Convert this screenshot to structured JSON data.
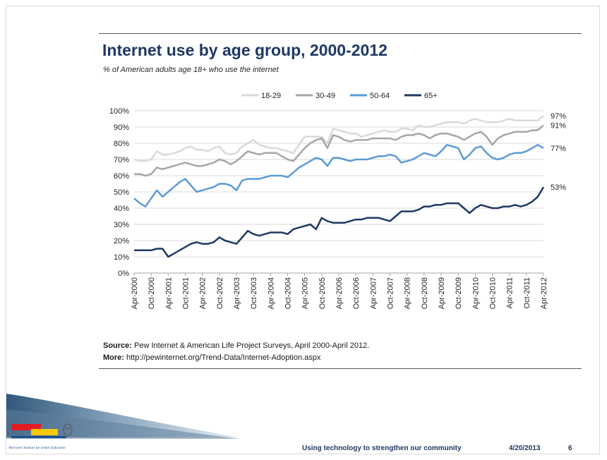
{
  "slide": {
    "title": "Internet use by age group, 2000-2012",
    "subtitle": "% of American adults age 18+ who use the internet",
    "source_label": "Source:",
    "source_text": " Pew Internet & American Life Project Surveys, April 2000-April 2012.",
    "more_label": "More:",
    "more_text": " http://pewinternet.org/Trend-Data/Internet-Adoption.aspx",
    "footer_tagline": "Using technology to strengthen our community",
    "footer_date": "4/20/2013",
    "page_number": "6",
    "logo_caption": "Worcester Institute for Senior Education"
  },
  "colors": {
    "accent_navy": "#1f3864",
    "logo_red": "#e31b23",
    "logo_yellow": "#f7c90a",
    "logo_blue": "#1c4e8c"
  },
  "chart_data": {
    "type": "line",
    "title": "Internet use by age group, 2000-2012",
    "subtitle": "% of American adults age 18+ who use the internet",
    "ylim": [
      0,
      100
    ],
    "yticks": [
      "0%",
      "10%",
      "20%",
      "30%",
      "40%",
      "50%",
      "60%",
      "70%",
      "80%",
      "90%",
      "100%"
    ],
    "xticks": [
      "Apr-2000",
      "Oct-2000",
      "Apr-2001",
      "Oct-2001",
      "Apr-2002",
      "Oct-2002",
      "Apr-2003",
      "Oct-2003",
      "Apr-2004",
      "Oct-2004",
      "Apr-2005",
      "Oct-2005",
      "Apr-2006",
      "Oct-2006",
      "Apr-2007",
      "Oct-2007",
      "Apr-2008",
      "Oct-2008",
      "Apr-2009",
      "Oct-2009",
      "Apr-2010",
      "Oct-2010",
      "Apr-2011",
      "Oct-2011",
      "Apr-2012"
    ],
    "grid": true,
    "legend_position": "top",
    "x": [
      "Apr-2000",
      "Jun-2000",
      "Aug-2000",
      "Oct-2000",
      "Dec-2000",
      "Feb-2001",
      "Apr-2001",
      "Jun-2001",
      "Aug-2001",
      "Oct-2001",
      "Dec-2001",
      "Feb-2002",
      "Apr-2002",
      "Jun-2002",
      "Aug-2002",
      "Oct-2002",
      "Dec-2002",
      "Feb-2003",
      "Apr-2003",
      "Jun-2003",
      "Aug-2003",
      "Oct-2003",
      "Dec-2003",
      "Feb-2004",
      "Apr-2004",
      "Jun-2004",
      "Aug-2004",
      "Oct-2004",
      "Dec-2004",
      "Feb-2005",
      "Apr-2005",
      "Jun-2005",
      "Aug-2005",
      "Oct-2005",
      "Dec-2005",
      "Feb-2006",
      "Apr-2006",
      "Jun-2006",
      "Aug-2006",
      "Oct-2006",
      "Dec-2006",
      "Feb-2007",
      "Apr-2007",
      "Jun-2007",
      "Aug-2007",
      "Oct-2007",
      "Dec-2007",
      "Feb-2008",
      "Apr-2008",
      "Jun-2008",
      "Aug-2008",
      "Oct-2008",
      "Dec-2008",
      "Feb-2009",
      "Apr-2009",
      "Jun-2009",
      "Aug-2009",
      "Oct-2009",
      "Dec-2009",
      "Feb-2010",
      "Apr-2010",
      "Jun-2010",
      "Aug-2010",
      "Oct-2010",
      "Dec-2010",
      "Feb-2011",
      "Apr-2011",
      "Jun-2011",
      "Aug-2011",
      "Oct-2011",
      "Dec-2011",
      "Feb-2012",
      "Apr-2012"
    ],
    "series": [
      {
        "name": "18-29",
        "color": "#d9d9d9",
        "end_label": "97%",
        "values": [
          70,
          69,
          69,
          70,
          75,
          73,
          73,
          74,
          75,
          77,
          78,
          76,
          76,
          75,
          77,
          78,
          74,
          73,
          74,
          78,
          80,
          82,
          79,
          78,
          77,
          77,
          76,
          75,
          74,
          79,
          84,
          84,
          84,
          84,
          80,
          89,
          88,
          87,
          86,
          86,
          84,
          85,
          86,
          87,
          88,
          87,
          87,
          89,
          89,
          88,
          91,
          90,
          90,
          91,
          92,
          93,
          93,
          93,
          92,
          94,
          95,
          94,
          93,
          93,
          93,
          94,
          95,
          94,
          94,
          94,
          94,
          94,
          97
        ]
      },
      {
        "name": "30-49",
        "color": "#a6a6a6",
        "end_label": "91%",
        "values": [
          61,
          61,
          60,
          61,
          65,
          64,
          65,
          66,
          67,
          68,
          67,
          66,
          66,
          67,
          68,
          70,
          69,
          67,
          69,
          72,
          75,
          74,
          73,
          74,
          74,
          74,
          72,
          70,
          69,
          73,
          77,
          80,
          82,
          83,
          77,
          85,
          84,
          82,
          81,
          82,
          82,
          82,
          83,
          83,
          83,
          83,
          82,
          84,
          85,
          85,
          86,
          85,
          83,
          85,
          86,
          86,
          85,
          84,
          82,
          84,
          86,
          87,
          84,
          79,
          83,
          85,
          86,
          87,
          87,
          87,
          88,
          88,
          91
        ]
      },
      {
        "name": "50-64",
        "color": "#5b9bd5",
        "end_label": "77%",
        "values": [
          46,
          43,
          41,
          46,
          51,
          47,
          50,
          53,
          56,
          58,
          54,
          50,
          51,
          52,
          53,
          55,
          55,
          54,
          51,
          57,
          58,
          58,
          58,
          59,
          60,
          60,
          60,
          59,
          62,
          65,
          67,
          69,
          71,
          70,
          66,
          71,
          71,
          70,
          69,
          70,
          70,
          70,
          71,
          72,
          72,
          73,
          72,
          68,
          69,
          70,
          72,
          74,
          73,
          72,
          75,
          79,
          78,
          77,
          70,
          73,
          77,
          78,
          74,
          71,
          70,
          71,
          73,
          74,
          74,
          75,
          77,
          79,
          77
        ]
      },
      {
        "name": "65+",
        "color": "#1f3864",
        "end_label": "53%",
        "values": [
          14,
          14,
          14,
          14,
          15,
          15,
          10,
          12,
          14,
          16,
          18,
          19,
          18,
          18,
          19,
          22,
          20,
          19,
          18,
          22,
          26,
          24,
          23,
          24,
          25,
          25,
          25,
          24,
          27,
          28,
          29,
          30,
          27,
          34,
          32,
          31,
          31,
          31,
          32,
          33,
          33,
          34,
          34,
          34,
          33,
          32,
          35,
          38,
          38,
          38,
          39,
          41,
          41,
          42,
          42,
          43,
          43,
          43,
          40,
          37,
          40,
          42,
          41,
          40,
          40,
          41,
          41,
          42,
          41,
          42,
          44,
          47,
          53
        ]
      }
    ]
  }
}
